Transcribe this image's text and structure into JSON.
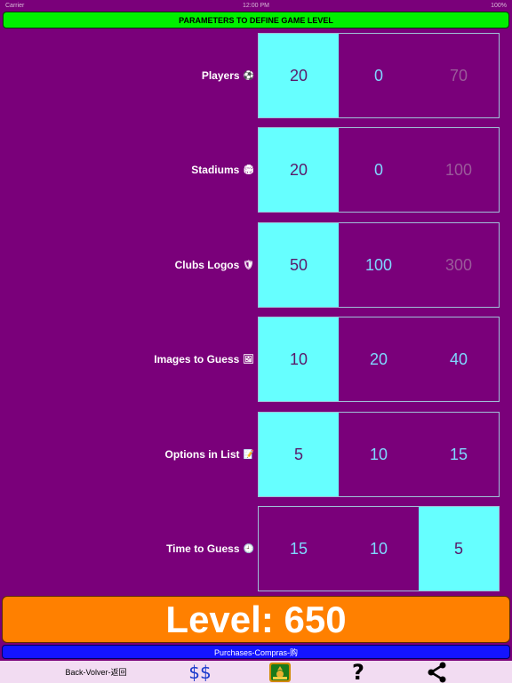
{
  "status_bar": {
    "left": "Carrier",
    "center": "12:00 PM",
    "right": "100%"
  },
  "title": "PARAMETERS TO DEFINE GAME LEVEL",
  "rows": [
    {
      "label": "Players",
      "emoji": "⚽",
      "options": [
        "20",
        "0",
        "70"
      ],
      "selected": 0,
      "dimmed": [
        2
      ]
    },
    {
      "label": "Stadiums",
      "emoji": "🏟",
      "options": [
        "20",
        "0",
        "100"
      ],
      "selected": 0,
      "dimmed": [
        2
      ]
    },
    {
      "label": "Clubs Logos",
      "emoji": "🛡",
      "options": [
        "50",
        "100",
        "300"
      ],
      "selected": 0,
      "dimmed": [
        2
      ]
    },
    {
      "label": "Images to Guess",
      "emoji": "🖼",
      "options": [
        "10",
        "20",
        "40"
      ],
      "selected": 0,
      "dimmed": []
    },
    {
      "label": "Options in List",
      "emoji": "📝",
      "options": [
        "5",
        "10",
        "15"
      ],
      "selected": 0,
      "dimmed": []
    },
    {
      "label": "Time to Guess",
      "emoji": "🕘",
      "options": [
        "15",
        "10",
        "5"
      ],
      "selected": 2,
      "dimmed": []
    }
  ],
  "level": {
    "label": "Level: 650"
  },
  "purchases": {
    "label": "Purchases-Compras-购"
  },
  "toolbar": {
    "back_label": "Back-Volver-返回",
    "dollar_label": "$$",
    "logo_icon": "app-logo-icon",
    "help_label": "?",
    "share_icon": "share-icon"
  },
  "colors": {
    "background": "#7a007a",
    "title_bar": "#00f000",
    "selected_cell": "#66ffff",
    "level_bar": "#ff8000",
    "purchases_bar": "#1414ff",
    "toolbar_bg": "#f2dcf2"
  }
}
